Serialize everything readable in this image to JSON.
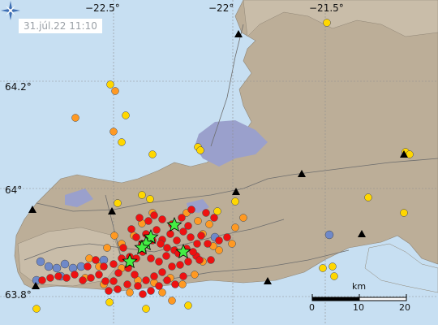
{
  "timestamp": "31.júl.22  11:10",
  "longitude_labels": [
    "−22.5°",
    "−22°",
    "−21.5°"
  ],
  "latitude_labels": [
    "64.2°",
    "64°",
    "63.8°"
  ],
  "scale_bar": {
    "title": "km",
    "ticks": [
      "0",
      "10",
      "20"
    ]
  },
  "icons": {
    "compass": "compass-star-icon",
    "volcano": "triangle-icon",
    "earthquake": "circle-icon",
    "large_quake": "star-icon"
  },
  "colors": {
    "sea": "#c7dff2",
    "land": "#bcae98",
    "land_light": "#c9bda9",
    "lava": "#9aa0cc",
    "quake_recent": "#ee1111",
    "quake_day": "#ff9922",
    "quake_older": "#ffd700",
    "quake_oldest": "#6f89c9",
    "large_quake": "#44ee44"
  }
}
